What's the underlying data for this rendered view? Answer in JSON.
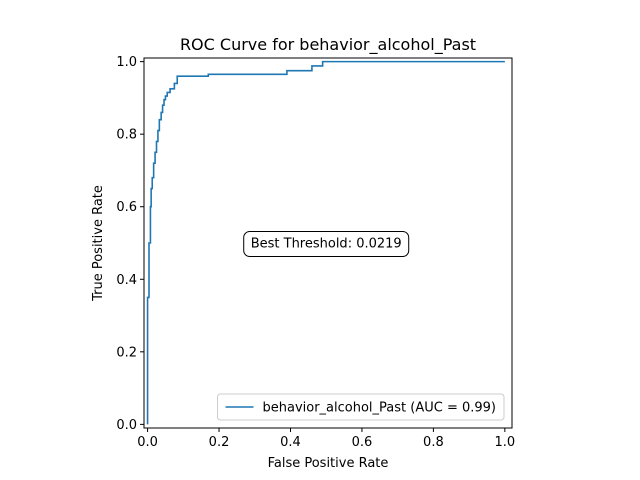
{
  "chart_data": {
    "type": "line",
    "title": "ROC Curve for behavior_alcohol_Past",
    "xlabel": "False Positive Rate",
    "ylabel": "True Positive Rate",
    "xlim": [
      -0.01,
      1.02
    ],
    "ylim": [
      -0.01,
      1.01
    ],
    "xticks": [
      0.0,
      0.2,
      0.4,
      0.6,
      0.8,
      1.0
    ],
    "yticks": [
      0.0,
      0.2,
      0.4,
      0.6,
      0.8,
      1.0
    ],
    "xtick_labels": [
      "0.0",
      "0.2",
      "0.4",
      "0.6",
      "0.8",
      "1.0"
    ],
    "ytick_labels": [
      "0.0",
      "0.2",
      "0.4",
      "0.6",
      "0.8",
      "1.0"
    ],
    "grid": false,
    "legend_position": "lower-right",
    "series": [
      {
        "name": "behavior_alcohol_Past (AUC = 0.99)",
        "color": "#1f77b4",
        "x": [
          0.0,
          0.0,
          0.004,
          0.004,
          0.008,
          0.008,
          0.01,
          0.01,
          0.013,
          0.013,
          0.017,
          0.017,
          0.021,
          0.021,
          0.025,
          0.025,
          0.029,
          0.029,
          0.033,
          0.033,
          0.038,
          0.038,
          0.042,
          0.042,
          0.046,
          0.046,
          0.05,
          0.05,
          0.055,
          0.055,
          0.063,
          0.063,
          0.075,
          0.075,
          0.083,
          0.083,
          0.17,
          0.17,
          0.39,
          0.39,
          0.46,
          0.46,
          0.49,
          0.49,
          1.0
        ],
        "y": [
          0.0,
          0.35,
          0.35,
          0.5,
          0.5,
          0.6,
          0.6,
          0.65,
          0.65,
          0.68,
          0.68,
          0.72,
          0.72,
          0.75,
          0.75,
          0.78,
          0.78,
          0.81,
          0.81,
          0.84,
          0.84,
          0.86,
          0.86,
          0.88,
          0.88,
          0.895,
          0.895,
          0.905,
          0.905,
          0.915,
          0.915,
          0.925,
          0.925,
          0.94,
          0.94,
          0.96,
          0.96,
          0.965,
          0.965,
          0.975,
          0.975,
          0.988,
          0.988,
          1.0,
          1.0
        ]
      }
    ],
    "annotations": [
      {
        "text": "Best Threshold: 0.0219",
        "x": 0.5,
        "y": 0.5
      }
    ]
  }
}
